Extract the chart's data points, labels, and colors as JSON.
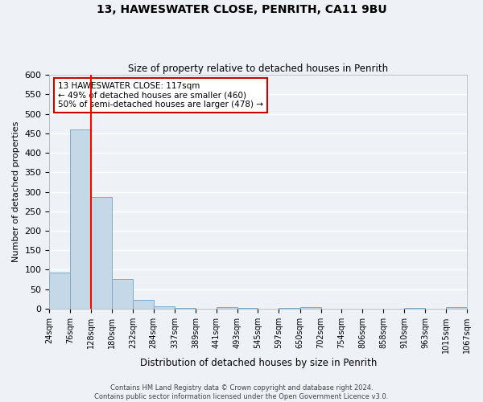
{
  "title": "13, HAWESWATER CLOSE, PENRITH, CA11 9BU",
  "subtitle": "Size of property relative to detached houses in Penrith",
  "xlabel": "Distribution of detached houses by size in Penrith",
  "ylabel": "Number of detached properties",
  "bar_color": "#c5d8e8",
  "bar_edge_color": "#7baac8",
  "bin_edges": [
    24,
    76,
    128,
    180,
    232,
    284,
    337,
    389,
    441,
    493,
    545,
    597,
    650,
    702,
    754,
    806,
    858,
    910,
    963,
    1015,
    1067
  ],
  "bar_heights": [
    93,
    460,
    287,
    76,
    22,
    6,
    2,
    0,
    4,
    2,
    0,
    1,
    3,
    0,
    0,
    0,
    0,
    1,
    0,
    3
  ],
  "tick_labels": [
    "24sqm",
    "76sqm",
    "128sqm",
    "180sqm",
    "232sqm",
    "284sqm",
    "337sqm",
    "389sqm",
    "441sqm",
    "493sqm",
    "545sqm",
    "597sqm",
    "650sqm",
    "702sqm",
    "754sqm",
    "806sqm",
    "858sqm",
    "910sqm",
    "963sqm",
    "1015sqm",
    "1067sqm"
  ],
  "ylim": [
    0,
    600
  ],
  "yticks": [
    0,
    50,
    100,
    150,
    200,
    250,
    300,
    350,
    400,
    450,
    500,
    550,
    600
  ],
  "red_line_x": 128,
  "annotation_title": "13 HAWESWATER CLOSE: 117sqm",
  "annotation_line1": "← 49% of detached houses are smaller (460)",
  "annotation_line2": "50% of semi-detached houses are larger (478) →",
  "footer1": "Contains HM Land Registry data © Crown copyright and database right 2024.",
  "footer2": "Contains public sector information licensed under the Open Government Licence v3.0.",
  "background_color": "#eef2f7",
  "grid_color": "#ffffff",
  "annotation_box_color": "#ffffff",
  "annotation_box_edge": "#cc0000",
  "title_fontsize": 10,
  "subtitle_fontsize": 8.5,
  "ylabel_fontsize": 8,
  "xlabel_fontsize": 8.5,
  "ytick_fontsize": 8,
  "xtick_fontsize": 7
}
